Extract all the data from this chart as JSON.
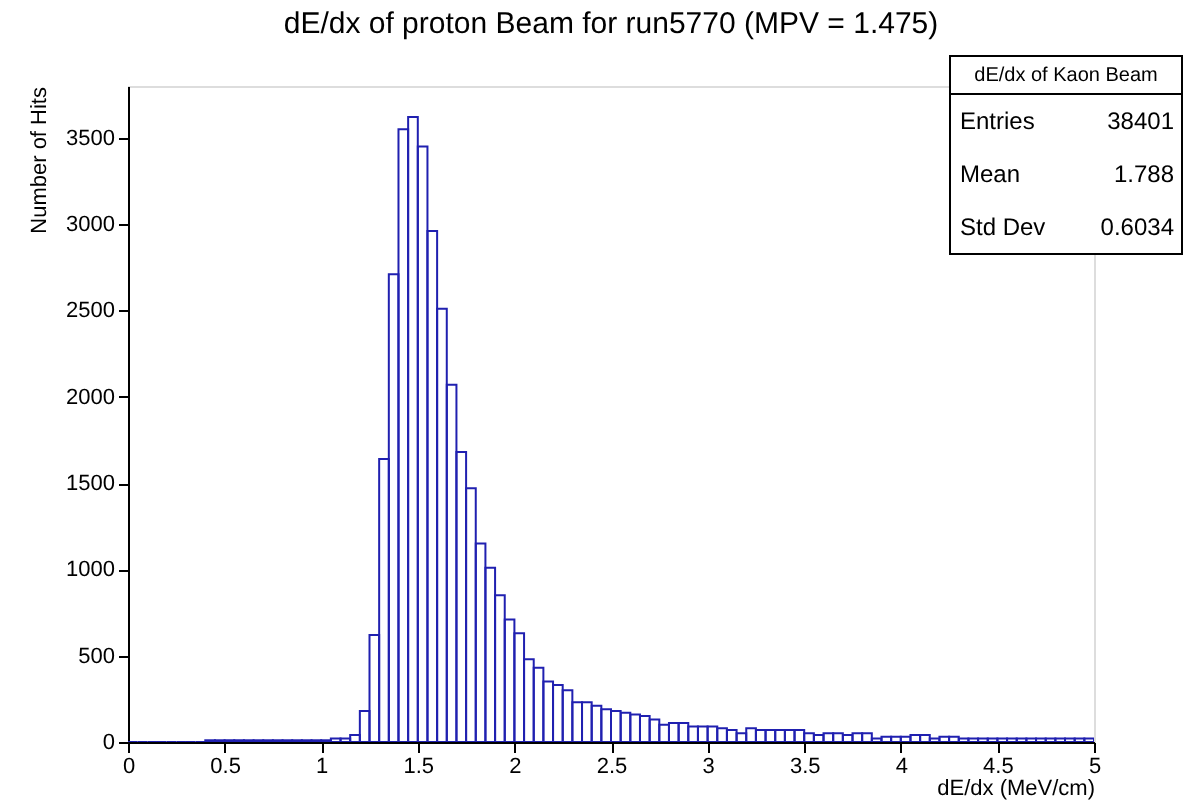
{
  "chart_data": {
    "type": "histogram",
    "title": "dE/dx of proton Beam for run5770 (MPV = 1.475)",
    "xlabel": "dE/dx (MeV/cm)",
    "ylabel": "Number of Hits",
    "color": "#2020b0",
    "bins": [
      0,
      0.05,
      0.1,
      0.15,
      0.2,
      0.25,
      0.3,
      0.35,
      0.4,
      0.45,
      0.5,
      0.55,
      0.6,
      0.65,
      0.7,
      0.75,
      0.8,
      0.85,
      0.9,
      0.95,
      1,
      1.05,
      1.1,
      1.15,
      1.2,
      1.25,
      1.3,
      1.35,
      1.4,
      1.45,
      1.5,
      1.55,
      1.6,
      1.65,
      1.7,
      1.75,
      1.8,
      1.85,
      1.9,
      1.95,
      2,
      2.05,
      2.1,
      2.15,
      2.2,
      2.25,
      2.3,
      2.35,
      2.4,
      2.45,
      2.5,
      2.55,
      2.6,
      2.65,
      2.7,
      2.75,
      2.8,
      2.85,
      2.9,
      2.95,
      3,
      3.05,
      3.1,
      3.15,
      3.2,
      3.25,
      3.3,
      3.35,
      3.4,
      3.45,
      3.5,
      3.55,
      3.6,
      3.65,
      3.7,
      3.75,
      3.8,
      3.85,
      3.9,
      3.95,
      4,
      4.05,
      4.1,
      4.15,
      4.2,
      4.25,
      4.3,
      4.35,
      4.4,
      4.45,
      4.5,
      4.55,
      4.6,
      4.65,
      4.7,
      4.75,
      4.8,
      4.85,
      4.9,
      4.95,
      5
    ],
    "values": [
      0,
      0,
      0,
      0,
      0,
      0,
      0,
      0,
      10,
      10,
      10,
      10,
      10,
      10,
      10,
      10,
      10,
      10,
      10,
      10,
      10,
      20,
      20,
      40,
      180,
      620,
      1640,
      2710,
      3550,
      3620,
      3450,
      2960,
      2510,
      2070,
      1680,
      1470,
      1150,
      1010,
      850,
      710,
      630,
      480,
      430,
      350,
      330,
      300,
      230,
      230,
      210,
      190,
      180,
      170,
      160,
      150,
      130,
      100,
      110,
      110,
      90,
      90,
      90,
      80,
      70,
      50,
      80,
      70,
      70,
      70,
      70,
      70,
      50,
      40,
      50,
      50,
      40,
      50,
      50,
      20,
      30,
      30,
      30,
      40,
      40,
      20,
      30,
      30,
      20,
      20,
      20,
      20,
      20,
      20,
      20,
      20,
      20,
      20,
      20,
      20,
      20,
      20
    ],
    "xlim": [
      0,
      5
    ],
    "xticks": [
      0,
      0.5,
      1,
      1.5,
      2,
      2.5,
      3,
      3.5,
      4,
      4.5,
      5
    ],
    "ylim": [
      0,
      3800
    ],
    "yticks": [
      0,
      500,
      1000,
      1500,
      2000,
      2500,
      3000,
      3500
    ],
    "grid": false,
    "annotations": [
      "dE/dx of Kaon Beam",
      "Entries",
      "38401",
      "Mean",
      "1.788",
      "Std Dev",
      "0.6034"
    ]
  }
}
